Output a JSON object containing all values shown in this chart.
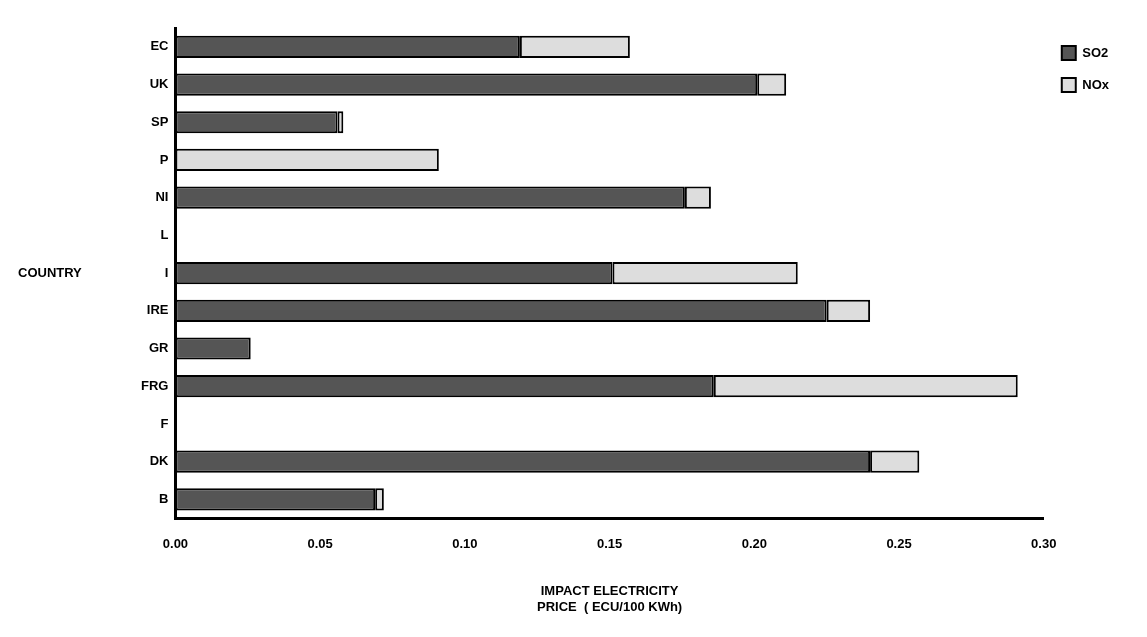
{
  "chart_data": {
    "type": "bar",
    "orientation": "horizontal",
    "stacked": true,
    "xlabel": "IMPACT ELECTRICITY\nPRICE  ( ECU/100 KWh)",
    "ylabel": "COUNTRY",
    "categories": [
      "EC",
      "UK",
      "SP",
      "P",
      "NI",
      "L",
      "I",
      "IRE",
      "GR",
      "FRG",
      "F",
      "DK",
      "B"
    ],
    "series": [
      {
        "name": "SO2",
        "color": "#555555",
        "values": [
          0.119,
          0.201,
          0.056,
          0,
          0.176,
          null,
          0.151,
          0.225,
          0.026,
          0.186,
          null,
          0.24,
          0.069
        ]
      },
      {
        "name": "NOx",
        "color": "#dddddd",
        "values": [
          0.038,
          0.01,
          0.002,
          0.091,
          0.009,
          null,
          0.064,
          0.015,
          0,
          0.105,
          null,
          0.017,
          0.003
        ]
      }
    ],
    "xlim": [
      0,
      0.3
    ],
    "xticks": [
      {
        "value": 0,
        "label": "0.00"
      },
      {
        "value": 0.05,
        "label": "0.05"
      },
      {
        "value": 0.1,
        "label": "0.10"
      },
      {
        "value": 0.15,
        "label": "0.15"
      },
      {
        "value": 0.2,
        "label": "0.20"
      },
      {
        "value": 0.25,
        "label": "0.25"
      },
      {
        "value": 0.3,
        "label": "0.30"
      }
    ],
    "grid": false,
    "legend": "right"
  }
}
